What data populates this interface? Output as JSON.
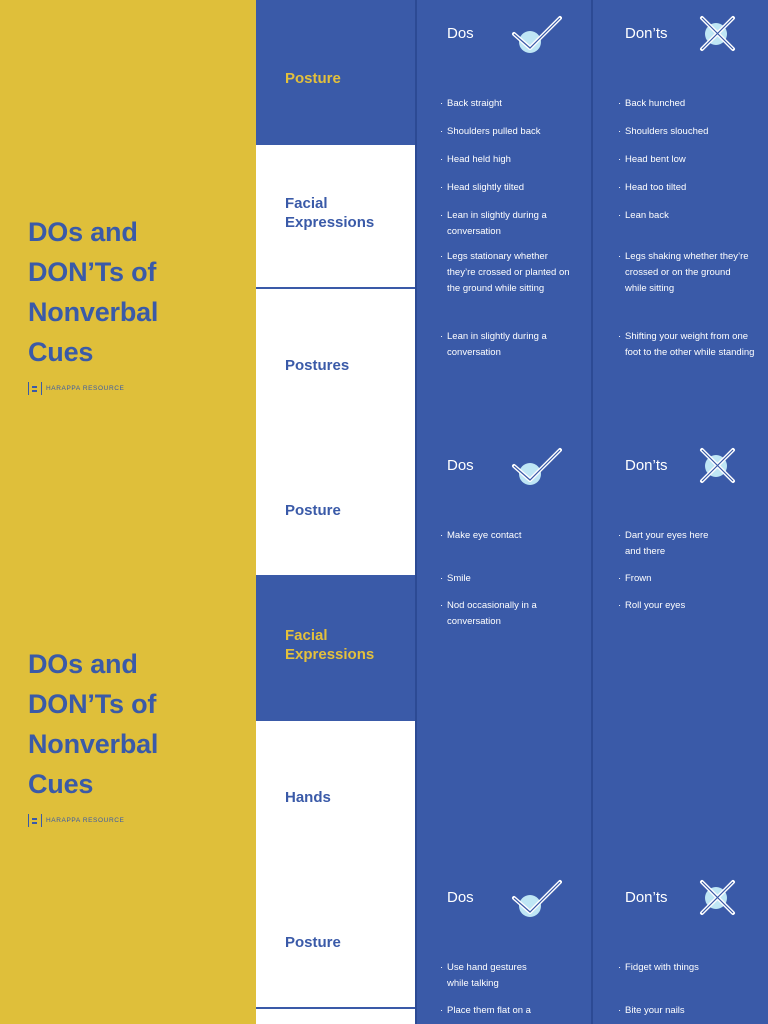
{
  "poster": {
    "title_lines": [
      "DOs and",
      "DON’Ts of",
      "Nonverbal",
      "Cues"
    ],
    "brand": "HARAPPA RESOURCE"
  },
  "labels": [
    "Posture",
    "Facial Expressions",
    "Postures",
    "Posture",
    "Facial Expressions",
    "Hands",
    "Posture"
  ],
  "headers": {
    "dos": "Dos",
    "donts": "Don’ts"
  },
  "colors": {
    "blue": "#3a5aa8",
    "yellow": "#dfbf3a",
    "icon": "#bfe6f5"
  },
  "icons": {
    "dos": "check-circle-icon",
    "donts": "x-circle-icon"
  },
  "sections": [
    {
      "dos": [
        "Back straight",
        "Shoulders pulled back",
        "Head held high",
        "Head slightly tilted",
        "Lean in slightly during  a conversation",
        "Legs stationary whether they’re crossed or planted on the ground while sitting",
        "Lean in slightly during a conversation"
      ],
      "donts": [
        "Back hunched",
        "Shoulders slouched",
        "Head bent low",
        "Head too tilted",
        "Lean back",
        "Legs shaking whether they’re crossed or on the ground while sitting",
        "Shifting your weight from one foot to the other while standing"
      ]
    },
    {
      "dos": [
        "Make eye contact",
        "Smile",
        "Nod occasionally in a conversation"
      ],
      "donts": [
        "Dart your eyes here and there",
        "Frown",
        "Roll your eyes"
      ]
    },
    {
      "dos": [
        "Use hand gestures while talking",
        "Place them flat on a"
      ],
      "donts": [
        "Fidget with things",
        "Bite your nails"
      ]
    }
  ]
}
